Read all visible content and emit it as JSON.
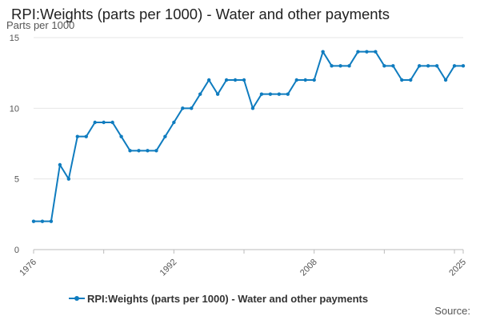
{
  "colors": {
    "series": "#0f7cbf",
    "grid": "#e6e6e6",
    "axis": "#bbbbbb",
    "text": "#555555"
  },
  "footer": {
    "source_label": "Source:"
  },
  "chart_data": {
    "type": "line",
    "title": "RPI:Weights (parts per 1000) - Water and other payments",
    "ylabel": "Parts per 1000",
    "xlabel": "",
    "xlim": [
      1976,
      2025
    ],
    "ylim": [
      0,
      15
    ],
    "xticks": [
      "1976",
      "1992",
      "2008",
      "2025"
    ],
    "yticks": [
      "0",
      "5",
      "10",
      "15"
    ],
    "grid": "horizontal",
    "legend_position": "bottom",
    "x": [
      1976,
      1977,
      1978,
      1979,
      1980,
      1981,
      1982,
      1983,
      1984,
      1985,
      1986,
      1987,
      1988,
      1989,
      1990,
      1991,
      1992,
      1993,
      1994,
      1995,
      1996,
      1997,
      1998,
      1999,
      2000,
      2001,
      2002,
      2003,
      2004,
      2005,
      2006,
      2007,
      2008,
      2009,
      2010,
      2011,
      2012,
      2013,
      2014,
      2015,
      2016,
      2017,
      2018,
      2019,
      2020,
      2021,
      2022,
      2023,
      2024,
      2025
    ],
    "series": [
      {
        "name": "RPI:Weights (parts per 1000) - Water and other payments",
        "values": [
          2,
          2,
          2,
          6,
          5,
          8,
          8,
          9,
          9,
          9,
          8,
          7,
          7,
          7,
          7,
          8,
          9,
          10,
          10,
          11,
          12,
          11,
          12,
          12,
          12,
          10,
          11,
          11,
          11,
          11,
          12,
          12,
          12,
          14,
          13,
          13,
          13,
          14,
          14,
          14,
          13,
          13,
          12,
          12,
          13,
          13,
          13,
          12,
          13,
          13
        ]
      }
    ]
  }
}
